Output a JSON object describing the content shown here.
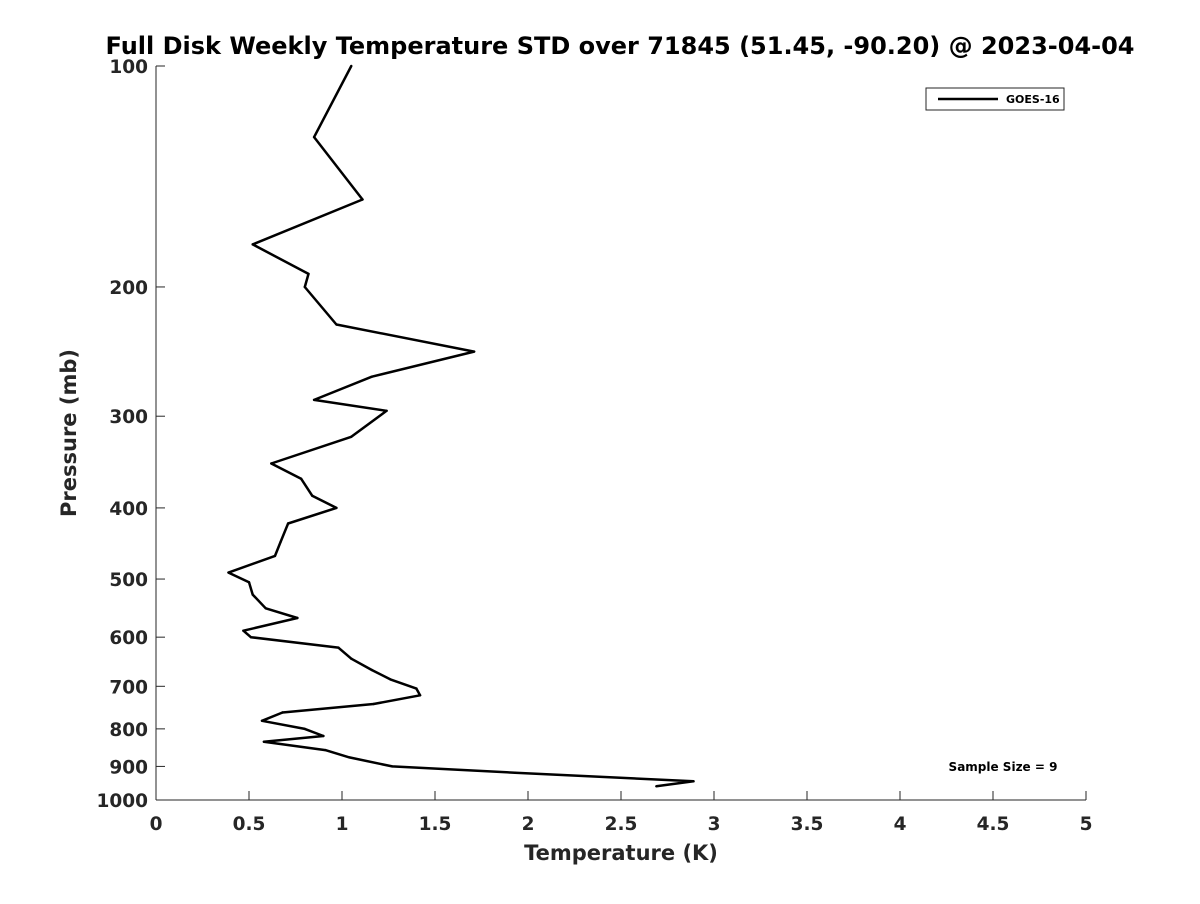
{
  "chart_data": {
    "type": "line",
    "title": "Full Disk Weekly Temperature STD over 71845 (51.45, -90.20) @ 2023-04-04",
    "xlabel": "Temperature (K)",
    "ylabel": "Pressure (mb)",
    "xlim": [
      0,
      5
    ],
    "ylim": [
      100,
      1000
    ],
    "y_scale": "log",
    "y_reversed": true,
    "x_ticks": [
      "0",
      "0.5",
      "1",
      "1.5",
      "2",
      "2.5",
      "3",
      "3.5",
      "4",
      "4.5",
      "5"
    ],
    "y_ticks": [
      "100",
      "200",
      "300",
      "400",
      "500",
      "600",
      "700",
      "800",
      "900",
      "1000"
    ],
    "grid": false,
    "legend": {
      "position": "top-right",
      "entries": [
        "GOES-16"
      ]
    },
    "annotation": "Sample Size = 9",
    "line_color": "#000000",
    "series": [
      {
        "name": "GOES-16",
        "x": [
          1.05,
          0.85,
          1.11,
          0.52,
          0.82,
          0.8,
          0.97,
          1.71,
          1.16,
          0.85,
          1.24,
          1.05,
          0.62,
          0.78,
          0.84,
          0.97,
          0.71,
          0.67,
          0.64,
          0.39,
          0.5,
          0.52,
          0.59,
          0.76,
          0.47,
          0.51,
          0.98,
          1.05,
          1.16,
          1.26,
          1.4,
          1.42,
          1.17,
          0.68,
          0.57,
          0.8,
          0.9,
          0.58,
          0.91,
          1.04,
          1.27,
          1.93,
          2.89,
          2.69
        ],
        "y": [
          100,
          125,
          152,
          175,
          192,
          200,
          225,
          245,
          265,
          285,
          295,
          320,
          348,
          365,
          385,
          400,
          420,
          445,
          465,
          490,
          505,
          525,
          548,
          565,
          588,
          600,
          620,
          642,
          665,
          685,
          705,
          720,
          740,
          760,
          780,
          800,
          818,
          833,
          855,
          875,
          900,
          918,
          943,
          958
        ]
      }
    ]
  }
}
